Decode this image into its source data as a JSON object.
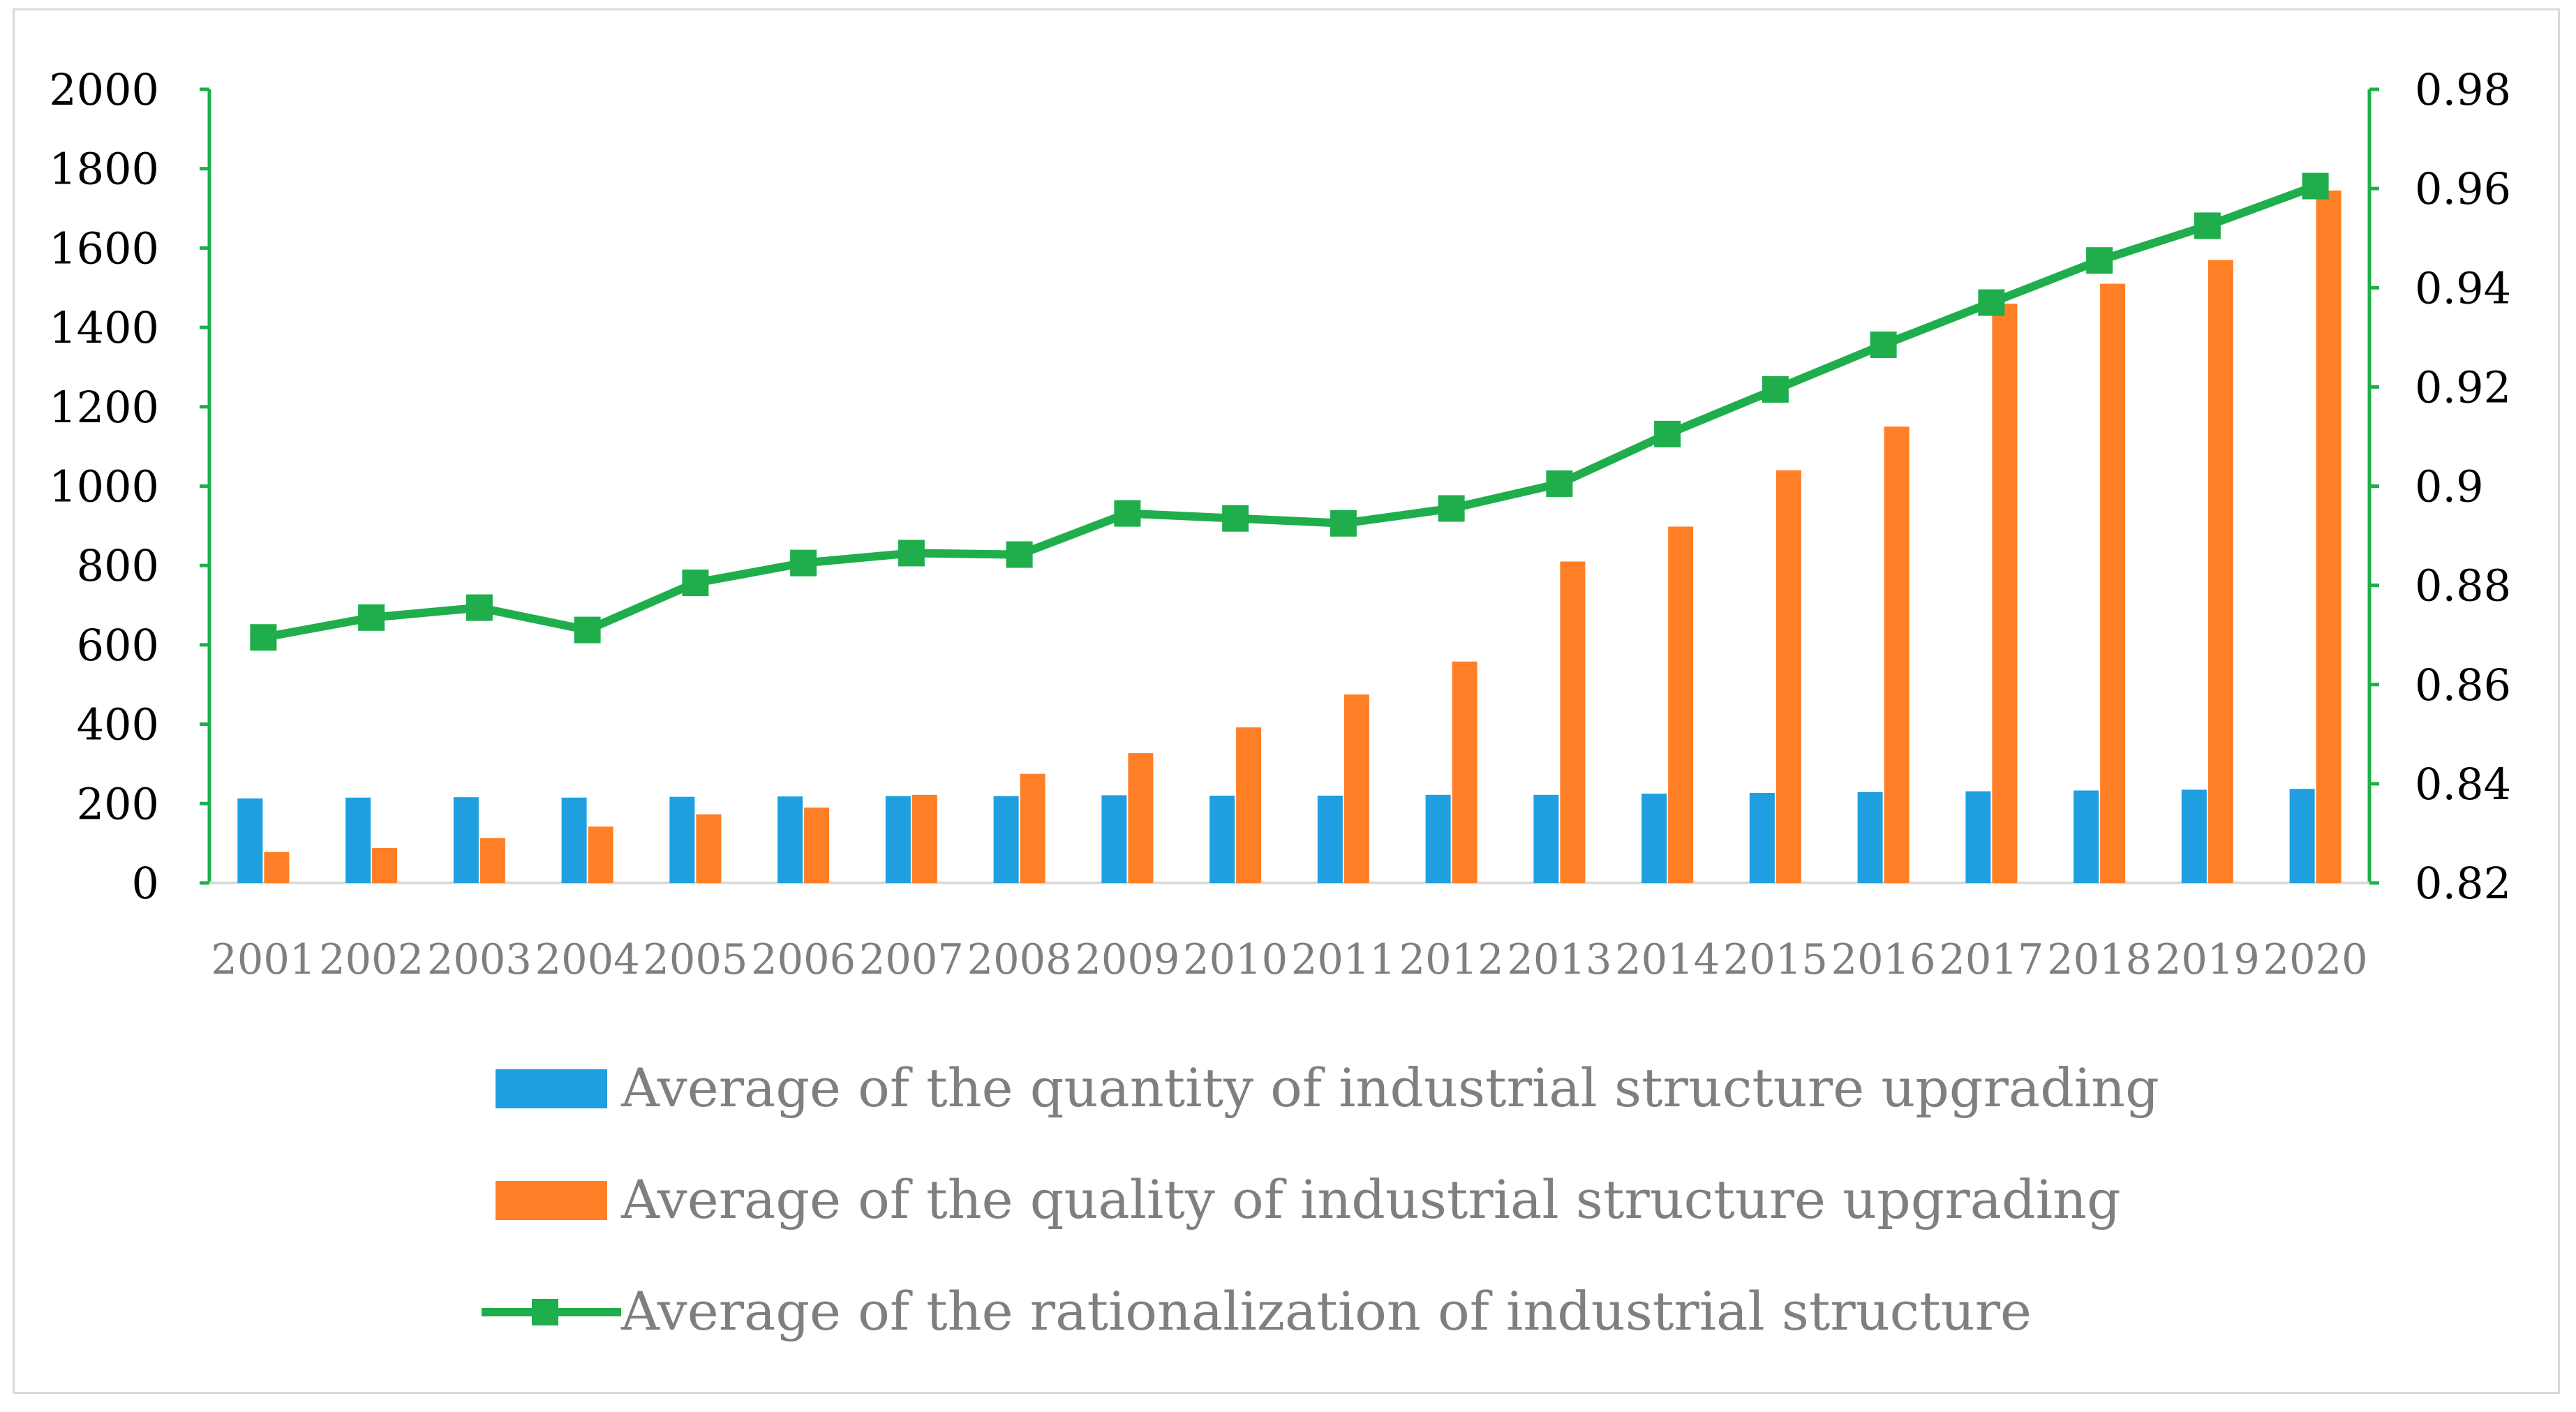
{
  "chart_data": {
    "type": "bar",
    "title": "",
    "categories": [
      "2001",
      "2002",
      "2003",
      "2004",
      "2005",
      "2006",
      "2007",
      "2008",
      "2009",
      "2010",
      "2011",
      "2012",
      "2013",
      "2014",
      "2015",
      "2016",
      "2017",
      "2018",
      "2019",
      "2020"
    ],
    "series": [
      {
        "name": "Average of the quantity of industrial structure upgrading",
        "type": "bar",
        "axis": "left",
        "color": "#1f9fdf",
        "values": [
          213,
          215,
          216,
          215,
          217,
          218,
          219,
          219,
          221,
          220,
          220,
          222,
          222,
          225,
          227,
          229,
          231,
          233,
          235,
          237
        ]
      },
      {
        "name": "Average of the quality of industrial structure upgrading",
        "type": "bar",
        "axis": "left",
        "color": "#ff7f27",
        "values": [
          78,
          88,
          113,
          142,
          173,
          190,
          222,
          275,
          327,
          392,
          475,
          558,
          810,
          898,
          1040,
          1150,
          1460,
          1510,
          1570,
          1745
        ]
      },
      {
        "name": "Average of the rationalization of industrial structure",
        "type": "line",
        "axis": "right",
        "color": "#1fae4b",
        "marker": "square",
        "values": [
          0.8695,
          0.8735,
          0.8755,
          0.871,
          0.8805,
          0.8845,
          0.8865,
          0.8862,
          0.8945,
          0.8935,
          0.8925,
          0.8955,
          0.9005,
          0.9105,
          0.9195,
          0.9285,
          0.937,
          0.9455,
          0.9525,
          0.9605
        ]
      }
    ],
    "y_left": {
      "ylim": [
        0,
        2000
      ],
      "ticks": [
        "0",
        "200",
        "400",
        "600",
        "800",
        "1000",
        "1200",
        "1400",
        "1600",
        "1800",
        "2000"
      ]
    },
    "y_right": {
      "ylim": [
        0.82,
        0.98
      ],
      "ticks": [
        "0.82",
        "0.84",
        "0.86",
        "0.88",
        "0.9",
        "0.92",
        "0.94",
        "0.96",
        "0.98"
      ]
    },
    "xlabel": "",
    "ylabel": "",
    "legend_position": "bottom",
    "grid": false,
    "axis_color": "#1fae4b"
  }
}
